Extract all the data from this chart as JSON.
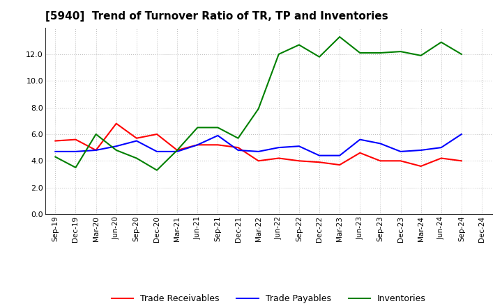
{
  "title": "[5940]  Trend of Turnover Ratio of TR, TP and Inventories",
  "labels": [
    "Sep-19",
    "Dec-19",
    "Mar-20",
    "Jun-20",
    "Sep-20",
    "Dec-20",
    "Mar-21",
    "Jun-21",
    "Sep-21",
    "Dec-21",
    "Mar-22",
    "Jun-22",
    "Sep-22",
    "Dec-22",
    "Mar-23",
    "Jun-23",
    "Sep-23",
    "Dec-23",
    "Mar-24",
    "Jun-24",
    "Sep-24",
    "Dec-24"
  ],
  "trade_receivables": [
    5.5,
    5.6,
    4.8,
    6.8,
    5.7,
    6.0,
    4.8,
    5.2,
    5.2,
    5.0,
    4.0,
    4.2,
    4.0,
    3.9,
    3.7,
    4.6,
    4.0,
    4.0,
    3.6,
    4.2,
    4.0,
    null
  ],
  "trade_payables": [
    4.7,
    4.7,
    4.8,
    5.1,
    5.5,
    4.7,
    4.7,
    5.2,
    5.9,
    4.8,
    4.7,
    5.0,
    5.1,
    4.4,
    4.4,
    5.6,
    5.3,
    4.7,
    4.8,
    5.0,
    6.0,
    null
  ],
  "inventories": [
    4.3,
    3.5,
    6.0,
    4.8,
    4.2,
    3.3,
    4.8,
    6.5,
    6.5,
    5.7,
    7.9,
    12.0,
    12.7,
    11.8,
    13.3,
    12.1,
    12.1,
    12.2,
    11.9,
    12.9,
    12.0,
    null
  ],
  "ylim": [
    0.0,
    14.0
  ],
  "yticks": [
    0.0,
    2.0,
    4.0,
    6.0,
    8.0,
    10.0,
    12.0
  ],
  "legend_labels": [
    "Trade Receivables",
    "Trade Payables",
    "Inventories"
  ],
  "colors": {
    "trade_receivables": "#ff0000",
    "trade_payables": "#0000ff",
    "inventories": "#008000"
  },
  "background_color": "#ffffff",
  "grid_color": "#bbbbbb",
  "title_fontsize": 11,
  "tick_fontsize": 7.5,
  "linewidth": 1.5
}
